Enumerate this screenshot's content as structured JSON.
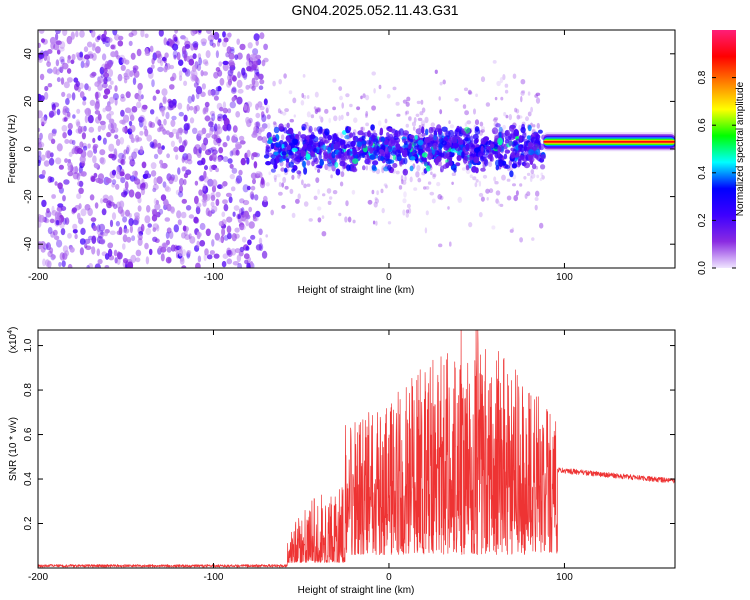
{
  "title": "GN04.2025.052.11.43.G31",
  "chart_data": [
    {
      "type": "heatmap",
      "title": "GN04.2025.052.11.43.G31",
      "xlabel": "Height of straight line (km)",
      "ylabel": "Frequency (Hz)",
      "xlim": [
        -200,
        163
      ],
      "ylim": [
        -50,
        50
      ],
      "xticks": [
        -200,
        -100,
        0,
        100
      ],
      "yticks": [
        -40,
        -20,
        0,
        20,
        40
      ],
      "colorbar": {
        "label": "Normalized spectral amplitude",
        "range": [
          0,
          1
        ],
        "ticks": [
          "0.0",
          "0.2",
          "0.4",
          "0.6",
          "0.8"
        ],
        "colormap": [
          "#f0e6ff",
          "#8a2be2",
          "#3d00ff",
          "#0000ff",
          "#00ffff",
          "#00ff00",
          "#ffff00",
          "#ff8000",
          "#ff0000",
          "#ff1e78"
        ]
      },
      "regions": [
        {
          "x_range": [
            -200,
            -70
          ],
          "y_range": [
            -50,
            50
          ],
          "density": 0.85,
          "amplitude": [
            0.05,
            0.22
          ],
          "pattern": "broadband speckle"
        },
        {
          "x_range": [
            -70,
            88
          ],
          "y_range": [
            -12,
            12
          ],
          "density": 0.9,
          "amplitude": [
            0.15,
            0.4
          ],
          "pattern": "concentrated band"
        },
        {
          "x_range": [
            -70,
            88
          ],
          "y_range": [
            -50,
            50
          ],
          "density": 0.25,
          "amplitude": [
            0.02,
            0.12
          ],
          "pattern": "diffuse halo"
        },
        {
          "x_range": [
            88,
            163
          ],
          "y_range": [
            -1,
            7
          ],
          "center_hz": 3,
          "amplitude": [
            0.6,
            0.95
          ],
          "pattern": "narrowband line"
        }
      ]
    },
    {
      "type": "line",
      "title": "",
      "xlabel": "Height of straight line (km)",
      "ylabel": "SNR (10 * v/v)",
      "y_multiplier": "(x10^4)",
      "y_multiplier_base": "(x10",
      "y_multiplier_exp": "4",
      "y_multiplier_close": ")",
      "xlim": [
        -200,
        163
      ],
      "ylim": [
        0,
        1.07
      ],
      "xticks": [
        -200,
        -100,
        0,
        100
      ],
      "yticks": [
        "0.2",
        "0.4",
        "0.6",
        "0.8",
        "1.0"
      ],
      "color": "#ee3333",
      "segments": [
        {
          "x_range": [
            -200,
            -58
          ],
          "baseline": 0.01,
          "noise": 0.012
        },
        {
          "x_range": [
            -58,
            -25
          ],
          "baseline": 0.05,
          "peaks": [
            [
              -57,
              0.15
            ],
            [
              -45,
              0.28
            ],
            [
              -37,
              0.32
            ],
            [
              -30,
              0.3
            ],
            [
              -25,
              0.45
            ],
            [
              -20,
              0.6
            ]
          ]
        },
        {
          "x_range": [
            -25,
            96
          ],
          "baseline": 0.1,
          "peaks": [
            [
              -20,
              0.6
            ],
            [
              0,
              0.7
            ],
            [
              20,
              0.85
            ],
            [
              30,
              0.9
            ],
            [
              42,
              1.06
            ],
            [
              50,
              1.06
            ],
            [
              60,
              0.95
            ],
            [
              70,
              0.85
            ],
            [
              80,
              0.78
            ],
            [
              90,
              0.7
            ],
            [
              96,
              0.66
            ]
          ]
        },
        {
          "x_range": [
            96,
            163
          ],
          "baseline": 0.4,
          "noise": 0.015,
          "start": 0.44,
          "end": 0.39
        }
      ]
    }
  ]
}
